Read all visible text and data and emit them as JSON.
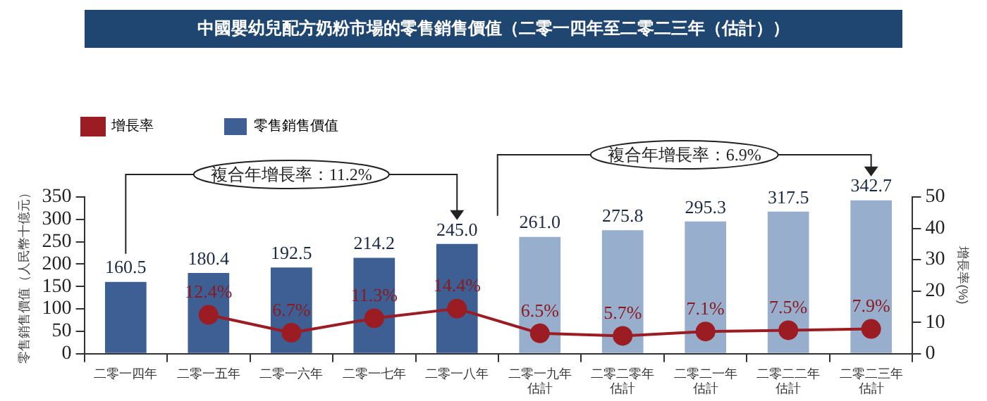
{
  "chart_data": {
    "type": "bar",
    "title": "中國嬰幼兒配方奶粉市場的零售銷售價值（二零一四年至二零二三年（估計））",
    "categories": [
      "二零一四年",
      "二零一五年",
      "二零一六年",
      "二零一七年",
      "二零一八年",
      "二零一九年估計",
      "二零二零年估計",
      "二零二一年估計",
      "二零二二年估計",
      "二零二三年估計"
    ],
    "ylabel": "零售銷售價值（人民幣十億元）",
    "y2label": "增長率(%)",
    "ylim": [
      0,
      350
    ],
    "yticks": [
      0,
      50,
      100,
      150,
      200,
      250,
      300,
      350
    ],
    "y2lim": [
      0,
      50
    ],
    "y2ticks": [
      0,
      10,
      20,
      30,
      40,
      50
    ],
    "grid": false,
    "legend": "top left",
    "annotations": [
      "複合年增長率：11.2%",
      "複合年增長率：6.9%"
    ],
    "series": [
      {
        "name": "增長率",
        "type": "line",
        "axis": "y2",
        "color": "#9b1c22",
        "marker": "circle",
        "values": [
          null,
          12.4,
          6.7,
          11.3,
          14.4,
          6.5,
          5.7,
          7.1,
          7.5,
          7.9
        ],
        "value_labels": [
          null,
          "12.4%",
          "6.7%",
          "11.3%",
          "14.4%",
          "6.5%",
          "5.7%",
          "7.1%",
          "7.5%",
          "7.9%"
        ]
      },
      {
        "name": "零售銷售價值",
        "color": "#3d5f94",
        "colors": [
          "#3d5f94",
          "#3d5f94",
          "#3d5f94",
          "#3d5f94",
          "#3d5f94",
          "#98aecd",
          "#98aecd",
          "#98aecd",
          "#98aecd",
          "#98aecd"
        ],
        "values": [
          160.5,
          180.4,
          192.5,
          214.2,
          245.0,
          261.0,
          275.8,
          295.3,
          317.5,
          342.7
        ],
        "value_labels": [
          "160.5",
          "180.4",
          "192.5",
          "214.2",
          "245.0",
          "261.0",
          "275.8",
          "295.3",
          "317.5",
          "342.7"
        ]
      }
    ]
  }
}
